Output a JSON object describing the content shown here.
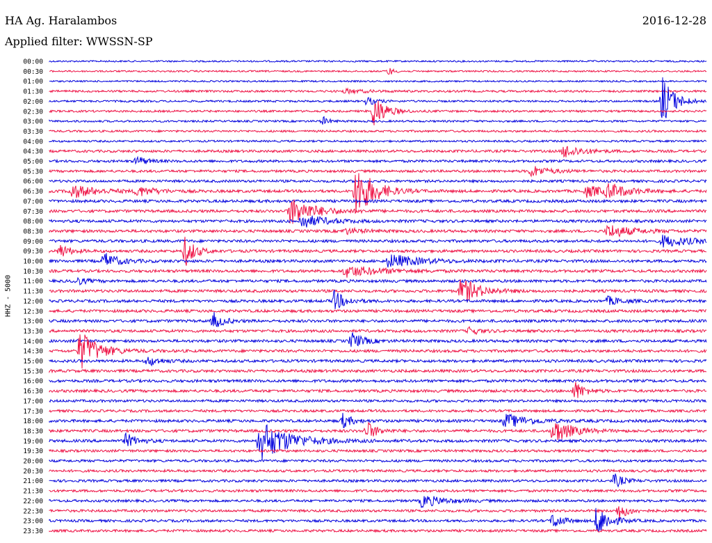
{
  "header": {
    "station": "HA Ag. Haralambos",
    "date": "2016-12-28",
    "filter": "Applied filter: WWSSN-SP"
  },
  "channel_label": "HHZ - 5000",
  "colors": {
    "odd_trace": "#0000dd",
    "even_trace": "#ee1144"
  },
  "chart_data": {
    "type": "line",
    "title": "HA Ag. Haralambos",
    "subtitle": "Applied filter: WWSSN-SP",
    "ylabel": "HHZ - 5000",
    "row_labels": [
      "00:00",
      "00:30",
      "01:00",
      "01:30",
      "02:00",
      "02:30",
      "03:00",
      "03:30",
      "04:00",
      "04:30",
      "05:00",
      "05:30",
      "06:00",
      "06:30",
      "07:00",
      "07:30",
      "08:00",
      "08:30",
      "09:00",
      "09:30",
      "10:00",
      "10:30",
      "11:00",
      "11:30",
      "12:00",
      "12:30",
      "13:00",
      "13:30",
      "14:00",
      "14:30",
      "15:00",
      "15:30",
      "16:00",
      "16:30",
      "17:00",
      "17:30",
      "18:00",
      "18:30",
      "19:00",
      "19:30",
      "20:00",
      "20:30",
      "21:00",
      "21:30",
      "22:00",
      "22:30",
      "23:00",
      "23:30"
    ],
    "row_duration_minutes": 30,
    "grid": false,
    "legend": "none",
    "noise_level": [
      1.2,
      1.2,
      1.2,
      1.5,
      1.4,
      1.5,
      1.4,
      1.5,
      1.4,
      1.8,
      1.8,
      1.8,
      1.8,
      2.0,
      2.0,
      2.0,
      2.0,
      2.0,
      2.0,
      2.0,
      2.0,
      2.0,
      2.0,
      2.0,
      2.0,
      2.0,
      2.0,
      2.0,
      2.0,
      2.0,
      2.0,
      2.0,
      2.0,
      2.0,
      1.8,
      1.8,
      2.0,
      2.0,
      2.0,
      1.8,
      1.8,
      1.8,
      1.8,
      1.8,
      1.8,
      1.8,
      1.8,
      1.8
    ],
    "events": [
      {
        "row": 1,
        "t": 15.5,
        "amp": 6,
        "dur": 0.4
      },
      {
        "row": 3,
        "t": 13.5,
        "amp": 3,
        "dur": 1.8
      },
      {
        "row": 4,
        "t": 28.0,
        "amp": 36,
        "dur": 1.0
      },
      {
        "row": 4,
        "t": 14.5,
        "amp": 6,
        "dur": 0.8
      },
      {
        "row": 5,
        "t": 14.8,
        "amp": 25,
        "dur": 1.0
      },
      {
        "row": 6,
        "t": 12.5,
        "amp": 6,
        "dur": 0.5
      },
      {
        "row": 9,
        "t": 23.5,
        "amp": 10,
        "dur": 1.5
      },
      {
        "row": 10,
        "t": 4.0,
        "amp": 7,
        "dur": 0.8
      },
      {
        "row": 11,
        "t": 22.0,
        "amp": 8,
        "dur": 1.5
      },
      {
        "row": 13,
        "t": 1.0,
        "amp": 10,
        "dur": 2.0
      },
      {
        "row": 13,
        "t": 4.0,
        "amp": 7,
        "dur": 1.5
      },
      {
        "row": 13,
        "t": 14.0,
        "amp": 40,
        "dur": 1.5
      },
      {
        "row": 13,
        "t": 24.5,
        "amp": 8,
        "dur": 2.0
      },
      {
        "row": 13,
        "t": 25.5,
        "amp": 9,
        "dur": 1.6
      },
      {
        "row": 15,
        "t": 11.0,
        "amp": 20,
        "dur": 2.0
      },
      {
        "row": 16,
        "t": 11.5,
        "amp": 10,
        "dur": 2.0
      },
      {
        "row": 17,
        "t": 25.5,
        "amp": 10,
        "dur": 2.0
      },
      {
        "row": 17,
        "t": 13.5,
        "amp": 4,
        "dur": 1.5
      },
      {
        "row": 18,
        "t": 28.0,
        "amp": 8,
        "dur": 2.5
      },
      {
        "row": 19,
        "t": 6.2,
        "amp": 22,
        "dur": 0.8
      },
      {
        "row": 19,
        "t": 0.5,
        "amp": 10,
        "dur": 0.8
      },
      {
        "row": 20,
        "t": 2.5,
        "amp": 12,
        "dur": 1.2
      },
      {
        "row": 20,
        "t": 15.5,
        "amp": 10,
        "dur": 2.5
      },
      {
        "row": 21,
        "t": 13.5,
        "amp": 8,
        "dur": 3.0
      },
      {
        "row": 22,
        "t": 1.2,
        "amp": 6,
        "dur": 0.8
      },
      {
        "row": 23,
        "t": 18.8,
        "amp": 20,
        "dur": 1.5
      },
      {
        "row": 24,
        "t": 13.0,
        "amp": 14,
        "dur": 1.0
      },
      {
        "row": 24,
        "t": 25.5,
        "amp": 6,
        "dur": 1.2
      },
      {
        "row": 26,
        "t": 7.5,
        "amp": 12,
        "dur": 0.8
      },
      {
        "row": 27,
        "t": 19.2,
        "amp": 6,
        "dur": 0.8
      },
      {
        "row": 28,
        "t": 13.8,
        "amp": 12,
        "dur": 1.0
      },
      {
        "row": 29,
        "t": 1.4,
        "amp": 30,
        "dur": 1.5
      },
      {
        "row": 30,
        "t": 4.5,
        "amp": 7,
        "dur": 1.0
      },
      {
        "row": 33,
        "t": 24.0,
        "amp": 14,
        "dur": 0.8
      },
      {
        "row": 36,
        "t": 13.4,
        "amp": 10,
        "dur": 0.8
      },
      {
        "row": 36,
        "t": 20.8,
        "amp": 10,
        "dur": 2.0
      },
      {
        "row": 37,
        "t": 23.0,
        "amp": 18,
        "dur": 1.5
      },
      {
        "row": 37,
        "t": 14.5,
        "amp": 14,
        "dur": 0.8
      },
      {
        "row": 38,
        "t": 9.6,
        "amp": 30,
        "dur": 2.5
      },
      {
        "row": 38,
        "t": 3.5,
        "amp": 10,
        "dur": 1.0
      },
      {
        "row": 42,
        "t": 25.8,
        "amp": 10,
        "dur": 0.8
      },
      {
        "row": 44,
        "t": 17.0,
        "amp": 9,
        "dur": 1.8
      },
      {
        "row": 45,
        "t": 26.0,
        "amp": 12,
        "dur": 0.8
      },
      {
        "row": 46,
        "t": 23.0,
        "amp": 12,
        "dur": 0.8
      },
      {
        "row": 46,
        "t": 25.0,
        "amp": 24,
        "dur": 1.0
      }
    ]
  }
}
